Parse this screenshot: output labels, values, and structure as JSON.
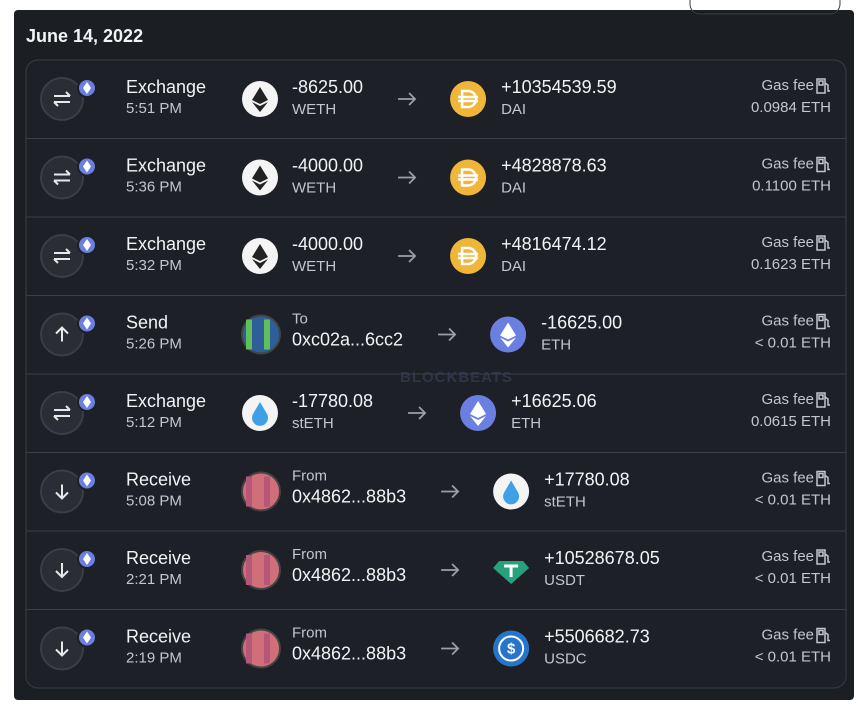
{
  "date": "June 14, 2022",
  "watermark": "BLOCKBEATS",
  "transactions": [
    {
      "type": "Exchange",
      "time": "5:51 PM",
      "from_main": "-8625.00",
      "from_sub": "WETH",
      "to_main": "+10354539.59",
      "to_sub": "DAI",
      "gas_label": "Gas fee",
      "gas": "0.0984 ETH"
    },
    {
      "type": "Exchange",
      "time": "5:36 PM",
      "from_main": "-4000.00",
      "from_sub": "WETH",
      "to_main": "+4828878.63",
      "to_sub": "DAI",
      "gas_label": "Gas fee",
      "gas": "0.1100 ETH"
    },
    {
      "type": "Exchange",
      "time": "5:32 PM",
      "from_main": "-4000.00",
      "from_sub": "WETH",
      "to_main": "+4816474.12",
      "to_sub": "DAI",
      "gas_label": "Gas fee",
      "gas": "0.1623 ETH"
    },
    {
      "type": "Send",
      "time": "5:26 PM",
      "from_sub": "To",
      "from_main": "0xc02a...6cc2",
      "to_main": "-16625.00",
      "to_sub": "ETH",
      "gas_label": "Gas fee",
      "gas": "< 0.01 ETH"
    },
    {
      "type": "Exchange",
      "time": "5:12 PM",
      "from_main": "-17780.08",
      "from_sub": "stETH",
      "to_main": "+16625.06",
      "to_sub": "ETH",
      "gas_label": "Gas fee",
      "gas": "0.0615 ETH"
    },
    {
      "type": "Receive",
      "time": "5:08 PM",
      "from_sub": "From",
      "from_main": "0x4862...88b3",
      "to_main": "+17780.08",
      "to_sub": "stETH",
      "gas_label": "Gas fee",
      "gas": "< 0.01 ETH"
    },
    {
      "type": "Receive",
      "time": "2:21 PM",
      "from_sub": "From",
      "from_main": "0x4862...88b3",
      "to_main": "+10528678.05",
      "to_sub": "USDT",
      "gas_label": "Gas fee",
      "gas": "< 0.01 ETH"
    },
    {
      "type": "Receive",
      "time": "2:19 PM",
      "from_sub": "From",
      "from_main": "0x4862...88b3",
      "to_main": "+5506682.73",
      "to_sub": "USDC",
      "gas_label": "Gas fee",
      "gas": "< 0.01 ETH"
    }
  ]
}
